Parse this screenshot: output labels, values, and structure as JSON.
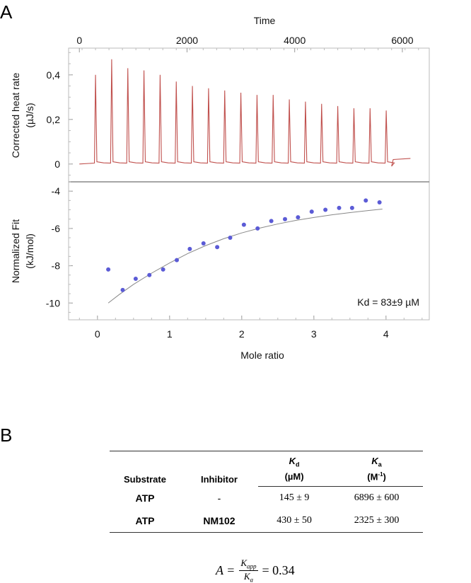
{
  "panel_a_label": "A",
  "panel_b_label": "B",
  "chart_data": [
    {
      "type": "line",
      "name": "raw-heat-trace",
      "title": "",
      "xlabel": "Time",
      "ylabel": "Corrected heat rate",
      "yunit": "(µJ/s)",
      "xlim": [
        -200,
        6500
      ],
      "ylim": [
        -0.08,
        0.52
      ],
      "x_ticks": [
        "0",
        "2000",
        "4000",
        "6000"
      ],
      "x_tick_values": [
        0,
        2000,
        4000,
        6000
      ],
      "y_ticks": [
        "0",
        "0,2",
        "0,4"
      ],
      "y_tick_values": [
        0,
        0.2,
        0.4
      ],
      "line_color": "#c0504d",
      "baseline": 0.0,
      "injection_times": [
        300,
        600,
        900,
        1200,
        1500,
        1800,
        2100,
        2400,
        2700,
        3000,
        3300,
        3600,
        3900,
        4200,
        4500,
        4800,
        5100,
        5400,
        5700
      ],
      "peak_heights": [
        0.4,
        0.47,
        0.43,
        0.42,
        0.4,
        0.37,
        0.35,
        0.34,
        0.33,
        0.32,
        0.31,
        0.31,
        0.29,
        0.28,
        0.27,
        0.26,
        0.25,
        0.25,
        0.24
      ]
    },
    {
      "type": "scatter",
      "name": "normalized-fit",
      "title": "",
      "xlabel": "Mole ratio",
      "ylabel": "Normalized Fit",
      "yunit": "(kJ/mol)",
      "xlim": [
        -0.4,
        4.6
      ],
      "ylim": [
        -10.9,
        -3.5
      ],
      "x_ticks": [
        "0",
        "1",
        "2",
        "3",
        "4"
      ],
      "x_tick_values": [
        0,
        1,
        2,
        3,
        4
      ],
      "y_ticks": [
        "-4",
        "-6",
        "-8",
        "-10"
      ],
      "y_tick_values": [
        -4,
        -6,
        -8,
        -10
      ],
      "point_color": "#5b5bd6",
      "fit_color": "#888888",
      "annotation": "Kd = 83±9 µM",
      "series": [
        {
          "name": "data",
          "x": [
            0.15,
            0.35,
            0.53,
            0.72,
            0.91,
            1.1,
            1.28,
            1.47,
            1.66,
            1.84,
            2.03,
            2.22,
            2.41,
            2.6,
            2.78,
            2.97,
            3.16,
            3.35,
            3.53,
            3.72,
            3.91
          ],
          "y": [
            -8.2,
            -9.3,
            -8.7,
            -8.5,
            -8.2,
            -7.7,
            -7.1,
            -6.8,
            -7.0,
            -6.5,
            -5.8,
            -6.0,
            -5.6,
            -5.5,
            -5.4,
            -5.1,
            -5.0,
            -4.9,
            -4.9,
            -4.5,
            -4.6
          ]
        },
        {
          "name": "fit",
          "x": [
            0.15,
            0.3,
            0.5,
            0.75,
            1.0,
            1.25,
            1.5,
            1.75,
            2.0,
            2.25,
            2.5,
            2.75,
            3.0,
            3.25,
            3.5,
            3.75,
            3.95
          ],
          "y": [
            -10.0,
            -9.55,
            -9.0,
            -8.4,
            -7.85,
            -7.35,
            -6.92,
            -6.55,
            -6.24,
            -5.98,
            -5.76,
            -5.57,
            -5.41,
            -5.27,
            -5.15,
            -5.04,
            -4.96
          ]
        }
      ]
    }
  ],
  "table": {
    "headers": [
      "Substrate",
      "Inhibitor",
      "K",
      "K"
    ],
    "header_subs": [
      "",
      "",
      "d",
      "a"
    ],
    "header_units": [
      "",
      "",
      "(µM)",
      "(M"
    ],
    "ka_unit_sup": "-1",
    "ka_unit_close": ")",
    "rows": [
      [
        "ATP",
        "-",
        "145 ± 9",
        "6896 ± 600"
      ],
      [
        "ATP",
        "NM102",
        "430 ± 50",
        "2325 ± 300"
      ]
    ]
  },
  "equation": {
    "lhs": "A =",
    "numerator": "K",
    "numerator_sub": "app",
    "denominator": "K",
    "denominator_sub": "a",
    "rhs": "= 0.34"
  }
}
